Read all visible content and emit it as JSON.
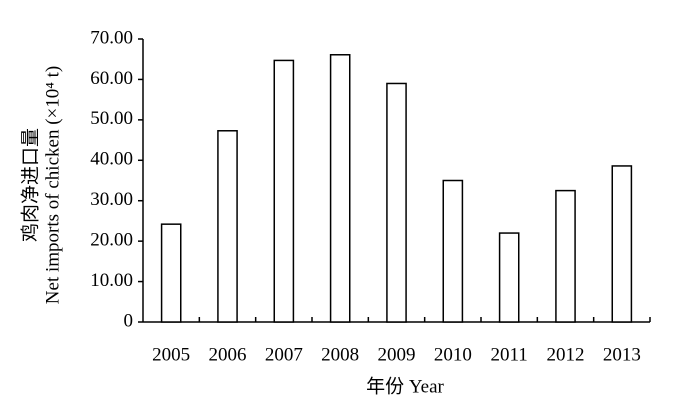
{
  "chart_data": {
    "type": "bar",
    "xlabel": "年份 Year",
    "ylabel": [
      "鸡肉净进口量",
      "Net imports of chicken (×10⁴ t)"
    ],
    "categories": [
      "2005",
      "2006",
      "2007",
      "2008",
      "2009",
      "2010",
      "2011",
      "2012",
      "2013"
    ],
    "values": [
      24.2,
      47.3,
      64.7,
      66.1,
      59.0,
      35.0,
      22.0,
      32.5,
      38.6
    ],
    "color": "#ffffff",
    "ylim": [
      0,
      70
    ],
    "yticks": [
      0,
      {
        "value": 10,
        "label": "10.00"
      },
      {
        "value": 20,
        "label": "20.00"
      },
      {
        "value": 30,
        "label": "30.00"
      },
      {
        "value": 40,
        "label": "40.00"
      },
      {
        "value": 50,
        "label": "50.00"
      },
      {
        "value": 60,
        "label": "60.00"
      },
      {
        "value": 70,
        "label": "70.00"
      }
    ]
  }
}
